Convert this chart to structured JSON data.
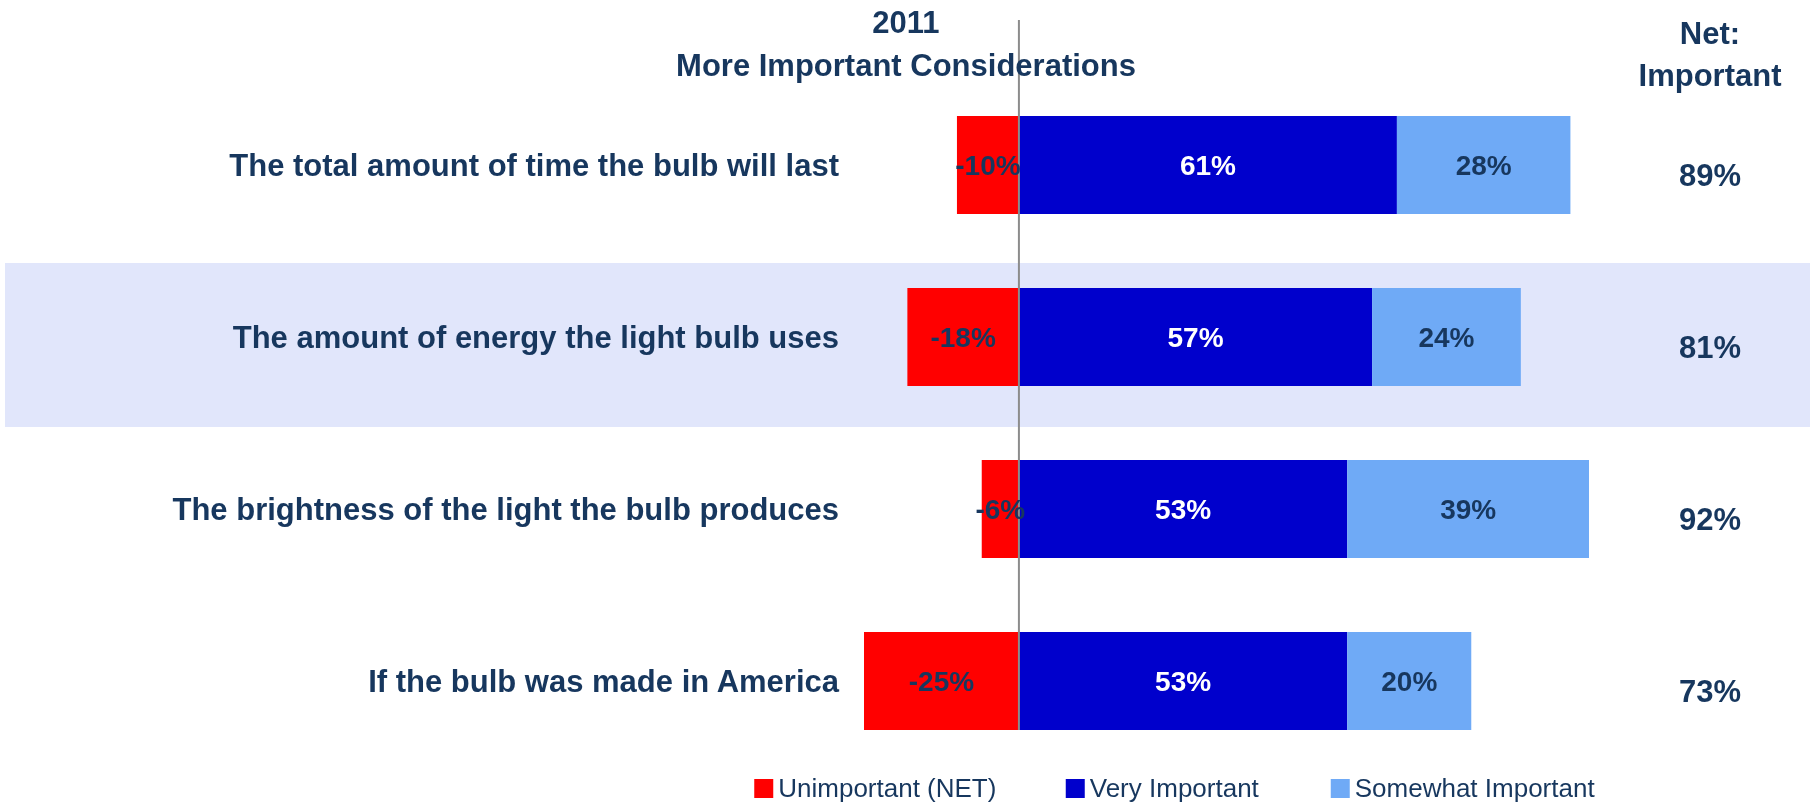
{
  "chart_data": {
    "type": "bar",
    "orientation": "horizontal",
    "stacked": true,
    "title": "2011",
    "subtitle": "More Important Considerations",
    "categories": [
      "The total amount of time the bulb will last",
      "The amount of energy the light bulb uses",
      "The brightness of the light the bulb produces",
      "If the bulb was made in America"
    ],
    "series": [
      {
        "name": "Unimportant (NET)",
        "color": "#ff0000",
        "values": [
          -10,
          -18,
          -6,
          -25
        ],
        "value_labels": [
          "-10%",
          "-18%",
          "-6%",
          "-25%"
        ]
      },
      {
        "name": "Very Important",
        "color": "#0000cc",
        "values": [
          61,
          57,
          53,
          53
        ],
        "value_labels": [
          "61%",
          "57%",
          "53%",
          "53%"
        ]
      },
      {
        "name": "Somewhat Important",
        "color": "#6faaf6",
        "values": [
          28,
          24,
          39,
          20
        ],
        "value_labels": [
          "28%",
          "24%",
          "39%",
          "20%"
        ]
      }
    ],
    "annotations": [
      "Net:\nImportant",
      "89%",
      "81%",
      "92%",
      "73%"
    ],
    "ref_lines": [
      {
        "axis": "x",
        "value": 0,
        "color": "#8c8c8c"
      }
    ],
    "bands": [
      {
        "axis": "y",
        "from": "The amount of energy the light bulb uses",
        "to": "The amount of energy the light bulb uses",
        "color": "#e1e6fb"
      }
    ],
    "legend": "bottom"
  }
}
